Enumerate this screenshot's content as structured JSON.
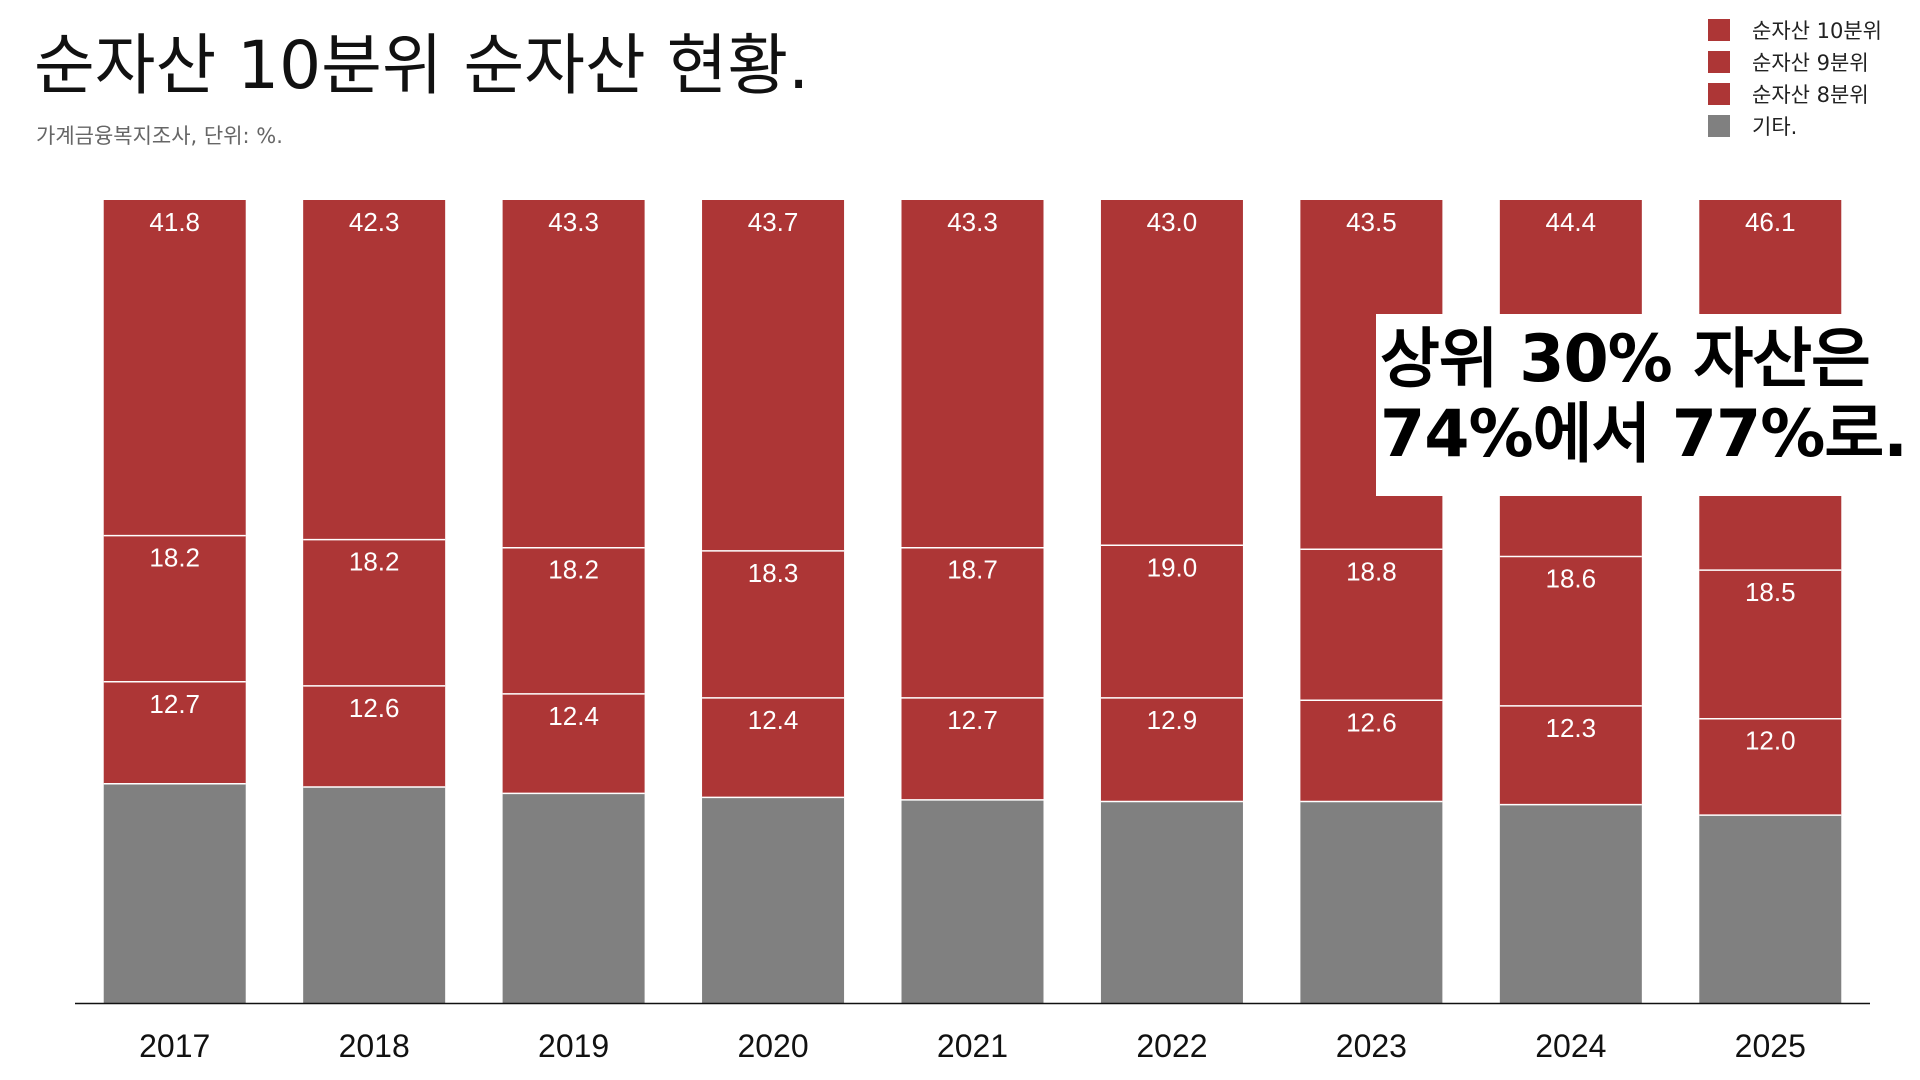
{
  "title": "순자산 10분위 순자산 현황.",
  "subtitle": "가계금융복지조사, 단위: %.",
  "legend": [
    {
      "label": "순자산 10분위",
      "color": "#ad3636"
    },
    {
      "label": "순자산 9분위",
      "color": "#ad3636"
    },
    {
      "label": "순자산 8분위",
      "color": "#ad3636"
    },
    {
      "label": "기타.",
      "color": "#808080"
    }
  ],
  "callout": {
    "line1": "상위 30% 자산은",
    "line2": "74%에서 77%로."
  },
  "chart_data": {
    "type": "bar",
    "stacked": true,
    "categories": [
      "2017",
      "2018",
      "2019",
      "2020",
      "2021",
      "2022",
      "2023",
      "2024",
      "2025"
    ],
    "series": [
      {
        "name": "기타.",
        "color": "#808080",
        "values": [
          27.3,
          26.9,
          26.1,
          25.6,
          25.3,
          25.1,
          25.1,
          24.7,
          23.4
        ],
        "labeled": false
      },
      {
        "name": "순자산 8분위",
        "color": "#ad3636",
        "values": [
          12.7,
          12.6,
          12.4,
          12.4,
          12.7,
          12.9,
          12.6,
          12.3,
          12.0
        ],
        "labeled": true
      },
      {
        "name": "순자산 9분위",
        "color": "#ad3636",
        "values": [
          18.2,
          18.2,
          18.2,
          18.3,
          18.7,
          19.0,
          18.8,
          18.6,
          18.5
        ],
        "labeled": true
      },
      {
        "name": "순자산 10분위",
        "color": "#ad3636",
        "values": [
          41.8,
          42.3,
          43.3,
          43.7,
          43.3,
          43.0,
          43.5,
          44.4,
          46.1
        ],
        "labeled": true
      }
    ],
    "ylim": [
      0,
      100
    ],
    "grid": false,
    "legend_position": "top-right",
    "xlabel": "",
    "ylabel": ""
  }
}
